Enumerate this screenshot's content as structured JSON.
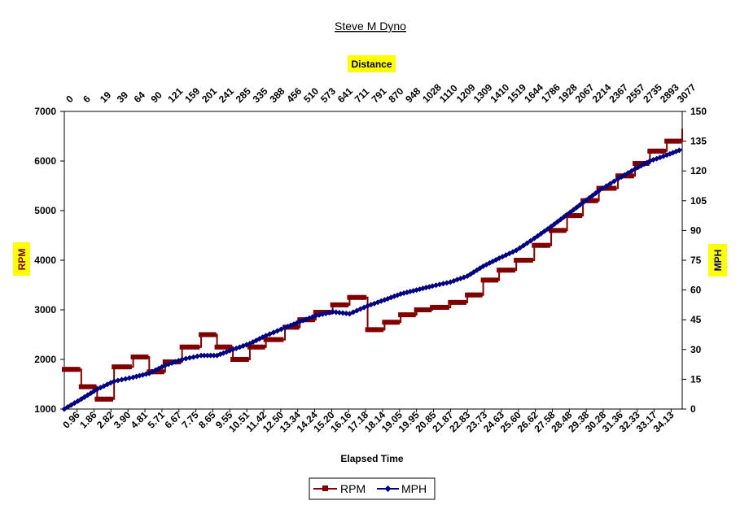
{
  "chart_data": {
    "type": "line",
    "title": "Steve M Dyno",
    "xlabel": "Elapsed Time",
    "top_axis_label": "Distance",
    "ylabel_left": "RPM",
    "ylabel_right": "MPH",
    "ylim_left": [
      1000,
      7000
    ],
    "ylim_right": [
      0,
      150
    ],
    "yticks_left": [
      "1000",
      "2000",
      "3000",
      "4000",
      "5000",
      "6000",
      "7000"
    ],
    "yticks_right": [
      "0",
      "15",
      "30",
      "45",
      "60",
      "75",
      "90",
      "105",
      "120",
      "135",
      "150"
    ],
    "x_tick_labels": [
      "0.96",
      "1.86",
      "2.82",
      "3.90",
      "4.81",
      "5.71",
      "6.67",
      "7.75",
      "8.65",
      "9.55",
      "10.51",
      "11.42",
      "12.50",
      "13.34",
      "14.24",
      "15.20",
      "16.16",
      "17.18",
      "18.14",
      "19.05",
      "19.95",
      "20.85",
      "21.87",
      "22.83",
      "23.73",
      "24.63",
      "25.60",
      "26.62",
      "27.58",
      "28.48",
      "29.38",
      "30.28",
      "31.36",
      "32.33",
      "33.17",
      "34.13"
    ],
    "top_tick_labels": [
      "0",
      "6",
      "19",
      "39",
      "64",
      "90",
      "121",
      "159",
      "201",
      "241",
      "285",
      "335",
      "388",
      "456",
      "510",
      "573",
      "641",
      "711",
      "791",
      "870",
      "948",
      "1028",
      "1110",
      "1209",
      "1309",
      "1410",
      "1519",
      "1644",
      "1786",
      "1928",
      "2067",
      "2214",
      "2367",
      "2557",
      "2735",
      "2893",
      "3077"
    ],
    "grid": "vertical dotted, horizontal dashed",
    "legend_position": "bottom",
    "x": [
      0.0,
      0.96,
      1.86,
      2.82,
      3.9,
      4.81,
      5.71,
      6.67,
      7.75,
      8.65,
      9.55,
      10.51,
      11.42,
      12.5,
      13.34,
      14.24,
      15.2,
      16.16,
      17.18,
      18.14,
      19.05,
      19.95,
      20.85,
      21.87,
      22.83,
      23.73,
      24.63,
      25.6,
      26.62,
      27.58,
      28.48,
      29.38,
      30.28,
      31.36,
      32.33,
      33.17,
      34.13,
      35.0
    ],
    "series": [
      {
        "name": "RPM",
        "axis": "left",
        "color": "#800000",
        "marker": "square",
        "values": [
          1800,
          1450,
          1200,
          1850,
          2050,
          1750,
          1950,
          2250,
          2500,
          2250,
          2000,
          2250,
          2400,
          2650,
          2800,
          2950,
          3100,
          3250,
          2600,
          2750,
          2900,
          3000,
          3050,
          3150,
          3300,
          3600,
          3800,
          4000,
          4300,
          4600,
          4900,
          5200,
          5450,
          5700,
          5950,
          6200,
          6400,
          6650
        ]
      },
      {
        "name": "MPH",
        "axis": "right",
        "color": "#000080",
        "marker": "diamond",
        "values": [
          0,
          5,
          10,
          14,
          16,
          18,
          22,
          25,
          27,
          27,
          30,
          33,
          37,
          41,
          44,
          47,
          49,
          48,
          52,
          55,
          58,
          60,
          62,
          64,
          67,
          72,
          76,
          80,
          86,
          92,
          98,
          104,
          110,
          116,
          121,
          125,
          128,
          131
        ]
      }
    ]
  }
}
